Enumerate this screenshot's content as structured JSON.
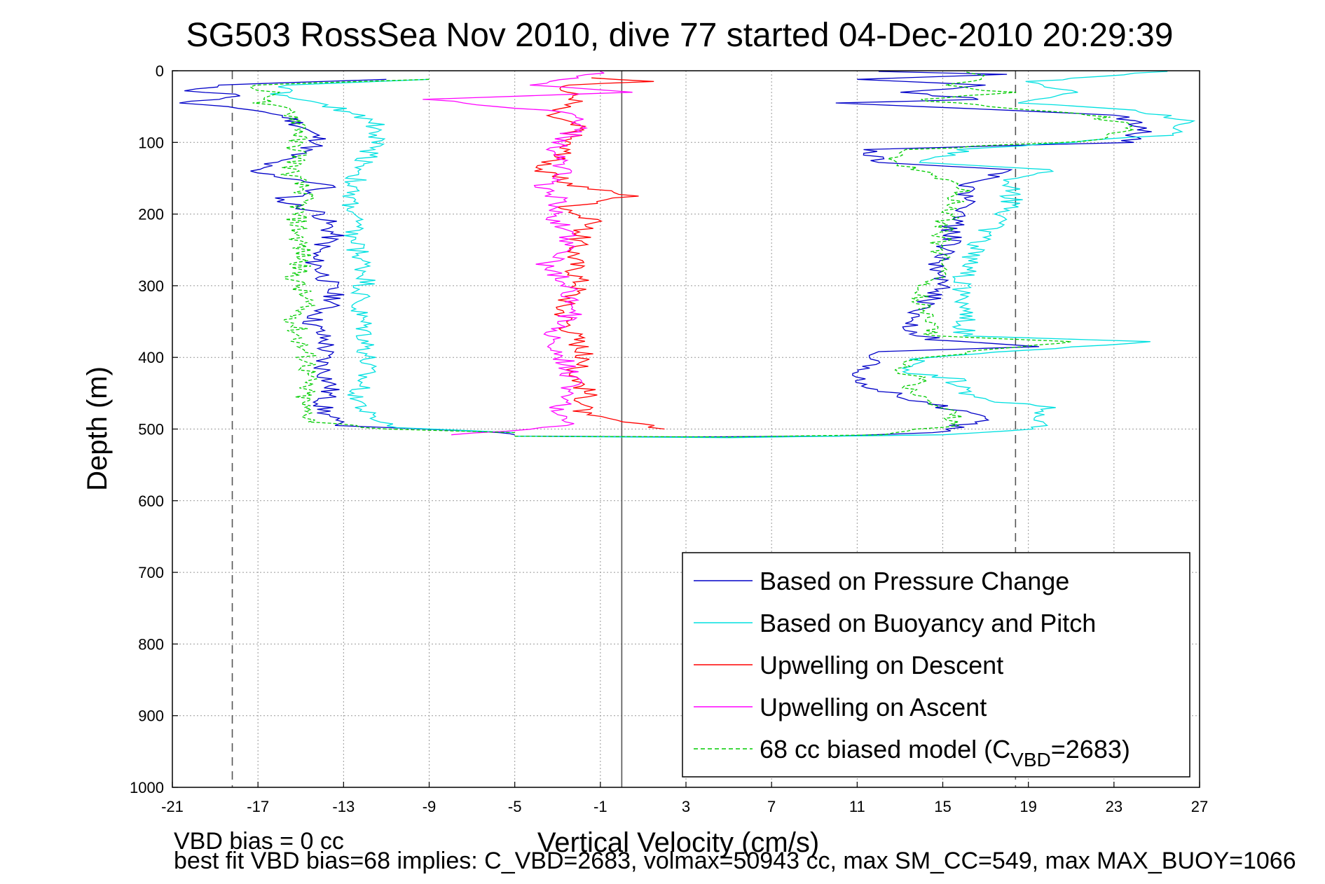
{
  "chart_data": {
    "type": "line",
    "title": "SG503 RossSea Nov 2010, dive 77 started 04-Dec-2010 20:29:39",
    "xlabel": "Vertical Velocity (cm/s)",
    "ylabel": "Depth (m)",
    "xlim": [
      -21,
      27
    ],
    "ylim": [
      0,
      1000
    ],
    "y_reversed": true,
    "grid": true,
    "xticks": [
      -21,
      -17,
      -13,
      -9,
      -5,
      -1,
      3,
      7,
      11,
      15,
      19,
      23,
      27
    ],
    "yticks": [
      0,
      100,
      200,
      300,
      400,
      500,
      600,
      700,
      800,
      900,
      1000
    ],
    "reference_lines": [
      {
        "x": -18.2,
        "style": "dashed",
        "color": "#555555"
      },
      {
        "x": 18.4,
        "style": "dashed",
        "color": "#555555"
      },
      {
        "x": 0.0,
        "style": "solid",
        "color": "#555555"
      }
    ],
    "legend": {
      "placement": "bottom-right",
      "entries": [
        {
          "label": "Based on Pressure Change",
          "color": "#0000c8",
          "style": "solid"
        },
        {
          "label": "Based on Buoyancy and Pitch",
          "color": "#00e0e0",
          "style": "solid"
        },
        {
          "label": "Upwelling on Descent",
          "color": "#ff0000",
          "style": "solid"
        },
        {
          "label": "Upwelling on Ascent",
          "color": "#ff00ff",
          "style": "solid"
        },
        {
          "label_main": "68 cc biased model (C",
          "label_sub": "VBD",
          "label_tail": "=2683)",
          "color": "#00cc00",
          "style": "dashed"
        }
      ]
    },
    "series": [
      {
        "name": "Based on Pressure Change (descent)",
        "color": "#0000c8",
        "style": "solid",
        "points": [
          [
            -11,
            12
          ],
          [
            -19,
            20
          ],
          [
            -20,
            28
          ],
          [
            -17.5,
            35
          ],
          [
            -20.8,
            45
          ],
          [
            -17,
            55
          ],
          [
            -15.6,
            65
          ],
          [
            -14.8,
            80
          ],
          [
            -14,
            100
          ],
          [
            -15.5,
            120
          ],
          [
            -17.5,
            140
          ],
          [
            -13.5,
            160
          ],
          [
            -16,
            180
          ],
          [
            -14,
            200
          ],
          [
            -13.5,
            230
          ],
          [
            -14.5,
            260
          ],
          [
            -13.8,
            290
          ],
          [
            -13.4,
            320
          ],
          [
            -14.5,
            350
          ],
          [
            -13.8,
            380
          ],
          [
            -14,
            410
          ],
          [
            -13.6,
            440
          ],
          [
            -14,
            470
          ],
          [
            -13.4,
            495
          ],
          [
            -5.2,
            505
          ],
          [
            -5,
            508
          ]
        ]
      },
      {
        "name": "Based on Pressure Change (ascent)",
        "color": "#0000c8",
        "style": "solid",
        "points": [
          [
            -5,
            510
          ],
          [
            3,
            511
          ],
          [
            10,
            510
          ],
          [
            14.5,
            505
          ],
          [
            16.5,
            490
          ],
          [
            17,
            480
          ],
          [
            15,
            470
          ],
          [
            12,
            445
          ],
          [
            11,
            430
          ],
          [
            11.5,
            410
          ],
          [
            12,
            392
          ],
          [
            19.5,
            385
          ],
          [
            14.5,
            375
          ],
          [
            13.5,
            360
          ],
          [
            14,
            330
          ],
          [
            15,
            300
          ],
          [
            14.8,
            270
          ],
          [
            15.3,
            240
          ],
          [
            15.5,
            210
          ],
          [
            16,
            180
          ],
          [
            16,
            160
          ],
          [
            18.2,
            138
          ],
          [
            12,
            128
          ],
          [
            11.3,
            110
          ],
          [
            23.5,
            100
          ],
          [
            24.5,
            80
          ],
          [
            23,
            62
          ],
          [
            18,
            55
          ],
          [
            10,
            45
          ],
          [
            17,
            40
          ],
          [
            13,
            30
          ],
          [
            17,
            20
          ],
          [
            11,
            12
          ],
          [
            18,
            5
          ],
          [
            12,
            1
          ]
        ]
      },
      {
        "name": "Based on Buoyancy and Pitch (descent)",
        "color": "#00e0e0",
        "style": "solid",
        "points": [
          [
            -9,
            12
          ],
          [
            -15.5,
            20
          ],
          [
            -16,
            35
          ],
          [
            -13,
            55
          ],
          [
            -11.5,
            70
          ],
          [
            -11.5,
            100
          ],
          [
            -12,
            130
          ],
          [
            -12.8,
            170
          ],
          [
            -12.5,
            200
          ],
          [
            -12.6,
            230
          ],
          [
            -12.2,
            260
          ],
          [
            -11.9,
            290
          ],
          [
            -12.4,
            330
          ],
          [
            -12,
            360
          ],
          [
            -11.9,
            390
          ],
          [
            -12,
            420
          ],
          [
            -12.3,
            450
          ],
          [
            -12,
            480
          ],
          [
            -10.5,
            498
          ],
          [
            -5,
            505
          ]
        ]
      },
      {
        "name": "Based on Buoyancy and Pitch (ascent)",
        "color": "#00e0e0",
        "style": "solid",
        "points": [
          [
            -5,
            510
          ],
          [
            5,
            512
          ],
          [
            15,
            508
          ],
          [
            19.5,
            500
          ],
          [
            19.8,
            470
          ],
          [
            16,
            455
          ],
          [
            15.5,
            430
          ],
          [
            13.2,
            420
          ],
          [
            14,
            400
          ],
          [
            24.7,
            378
          ],
          [
            16,
            370
          ],
          [
            16,
            340
          ],
          [
            15.8,
            300
          ],
          [
            16.3,
            270
          ],
          [
            16.5,
            240
          ],
          [
            17.6,
            210
          ],
          [
            18.2,
            180
          ],
          [
            18,
            150
          ],
          [
            20,
            138
          ],
          [
            14,
            128
          ],
          [
            16,
            110
          ],
          [
            25.5,
            90
          ],
          [
            26.3,
            70
          ],
          [
            24,
            55
          ],
          [
            19,
            45
          ],
          [
            21,
            30
          ],
          [
            19,
            15
          ],
          [
            25.5,
            1
          ]
        ]
      },
      {
        "name": "Upwelling on Descent",
        "color": "#ff0000",
        "style": "solid",
        "points": [
          [
            -1,
            10
          ],
          [
            1.5,
            15
          ],
          [
            -3,
            20
          ],
          [
            -2,
            40
          ],
          [
            -3.5,
            60
          ],
          [
            -2,
            80
          ],
          [
            -2.6,
            100
          ],
          [
            -3,
            120
          ],
          [
            -3.8,
            140
          ],
          [
            -2.2,
            160
          ],
          [
            0.5,
            175
          ],
          [
            -2.5,
            190
          ],
          [
            -1.5,
            210
          ],
          [
            -2.1,
            240
          ],
          [
            -2.2,
            270
          ],
          [
            -1.9,
            300
          ],
          [
            -2.8,
            330
          ],
          [
            -2.4,
            360
          ],
          [
            -1.8,
            390
          ],
          [
            -2.2,
            420
          ],
          [
            -1.6,
            450
          ],
          [
            -1.9,
            480
          ],
          [
            2,
            500
          ]
        ]
      },
      {
        "name": "Upwelling on Ascent",
        "color": "#ff00ff",
        "style": "solid",
        "points": [
          [
            -8.5,
            508
          ],
          [
            -5,
            503
          ],
          [
            -2.5,
            495
          ],
          [
            -3,
            470
          ],
          [
            -2.3,
            440
          ],
          [
            -2.5,
            410
          ],
          [
            -3.6,
            380
          ],
          [
            -2.8,
            360
          ],
          [
            -2.2,
            330
          ],
          [
            -2.5,
            300
          ],
          [
            -3.5,
            270
          ],
          [
            -2.4,
            240
          ],
          [
            -3,
            210
          ],
          [
            -2.9,
            180
          ],
          [
            -3.8,
            160
          ],
          [
            -2.6,
            140
          ],
          [
            -3,
            110
          ],
          [
            -2.2,
            80
          ],
          [
            -1.8,
            60
          ],
          [
            -9.3,
            40
          ],
          [
            0.5,
            30
          ],
          [
            -4,
            20
          ],
          [
            -2,
            10
          ],
          [
            -1,
            1
          ]
        ]
      },
      {
        "name": "68 cc biased model (descent)",
        "color": "#00cc00",
        "style": "dashed",
        "points": [
          [
            -9,
            12
          ],
          [
            -17.5,
            20
          ],
          [
            -16,
            35
          ],
          [
            -17,
            45
          ],
          [
            -15.6,
            55
          ],
          [
            -15.2,
            65
          ],
          [
            -14.8,
            80
          ],
          [
            -15.3,
            100
          ],
          [
            -15,
            120
          ],
          [
            -15.5,
            140
          ],
          [
            -14.8,
            170
          ],
          [
            -15.2,
            200
          ],
          [
            -15.1,
            230
          ],
          [
            -14.9,
            260
          ],
          [
            -15.3,
            290
          ],
          [
            -14.8,
            320
          ],
          [
            -15.3,
            350
          ],
          [
            -15,
            380
          ],
          [
            -14.6,
            410
          ],
          [
            -14.8,
            440
          ],
          [
            -14.9,
            470
          ],
          [
            -14.3,
            490
          ],
          [
            -11,
            500
          ],
          [
            -5,
            505
          ]
        ]
      },
      {
        "name": "68 cc biased model (ascent)",
        "color": "#00cc00",
        "style": "dashed",
        "points": [
          [
            -5,
            510
          ],
          [
            5,
            511
          ],
          [
            12,
            508
          ],
          [
            15.5,
            495
          ],
          [
            15.5,
            475
          ],
          [
            13.5,
            450
          ],
          [
            13.8,
            430
          ],
          [
            13,
            415
          ],
          [
            14,
            400
          ],
          [
            21,
            378
          ],
          [
            14.5,
            370
          ],
          [
            14.2,
            340
          ],
          [
            14,
            310
          ],
          [
            14.8,
            280
          ],
          [
            14.8,
            250
          ],
          [
            15,
            220
          ],
          [
            15.5,
            190
          ],
          [
            16,
            160
          ],
          [
            12.5,
            125
          ],
          [
            13.5,
            110
          ],
          [
            22,
            98
          ],
          [
            24,
            80
          ],
          [
            22,
            62
          ],
          [
            17,
            50
          ],
          [
            14,
            40
          ],
          [
            18,
            30
          ],
          [
            15,
            20
          ],
          [
            17,
            12
          ],
          [
            16,
            1
          ]
        ]
      }
    ]
  },
  "annotations": {
    "bias_line": "VBD bias = 0 cc",
    "fit_line": "best fit VBD bias=68 implies: C_VBD=2683, volmax=50943 cc, max SM_CC=549, max MAX_BUOY=1066"
  }
}
